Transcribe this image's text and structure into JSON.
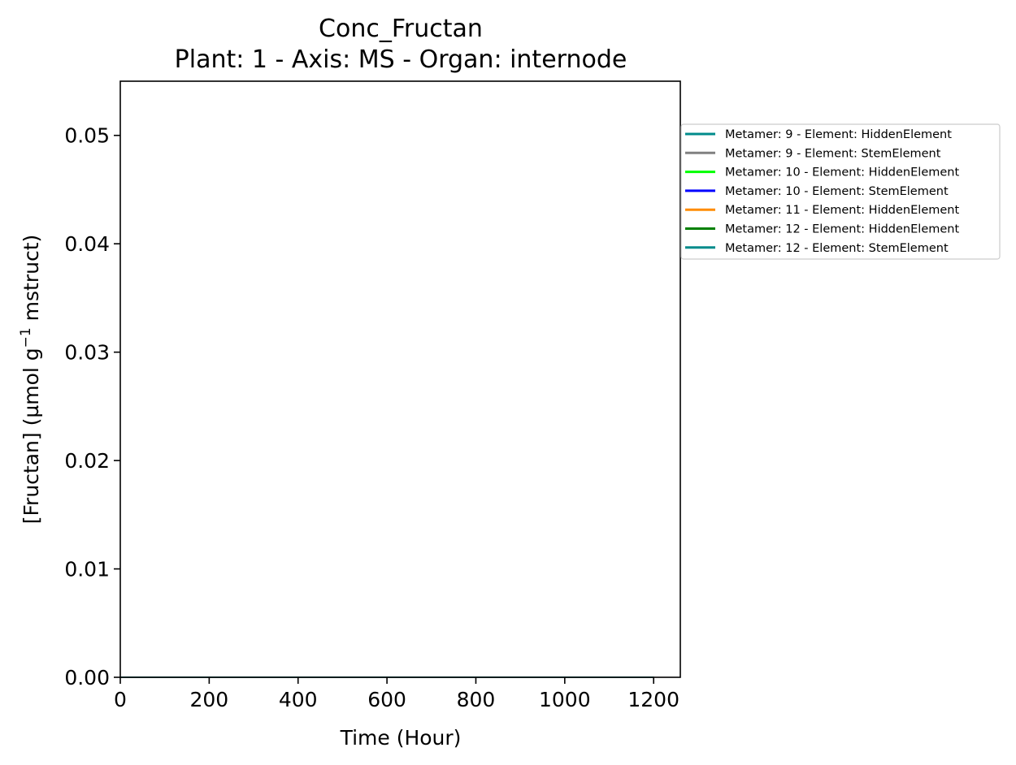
{
  "chart_data": {
    "type": "line",
    "title": "Conc_Fructan",
    "subtitle": "Plant: 1 - Axis: MS - Organ: internode",
    "xlabel": "Time (Hour)",
    "ylabel_main": "[Fructan] (µmol g",
    "ylabel_sup": "−1",
    "ylabel_tail": " mstruct)",
    "xlim": [
      0,
      1260
    ],
    "ylim": [
      0,
      0.055
    ],
    "x_ticks": [
      0,
      200,
      400,
      600,
      800,
      1000,
      1200
    ],
    "x_tick_labels": [
      "0",
      "200",
      "400",
      "600",
      "800",
      "1000",
      "1200"
    ],
    "y_ticks": [
      0,
      0.01,
      0.02,
      0.03,
      0.04,
      0.05
    ],
    "y_tick_labels": [
      "0.00",
      "0.01",
      "0.02",
      "0.03",
      "0.04",
      "0.05"
    ],
    "grid": false,
    "legend_placement": "outside-right",
    "series": [
      {
        "name": "Metamer: 9 - Element: HiddenElement",
        "color": "#008b8b",
        "x": [
          0,
          1200
        ],
        "y": [
          0,
          0
        ]
      },
      {
        "name": "Metamer: 9 - Element: StemElement",
        "color": "#808080",
        "x": [
          0,
          1200
        ],
        "y": [
          0,
          0
        ]
      },
      {
        "name": "Metamer: 10 - Element: HiddenElement",
        "color": "#00ff00",
        "x": [
          0,
          1200
        ],
        "y": [
          0,
          0
        ]
      },
      {
        "name": "Metamer: 10 - Element: StemElement",
        "color": "#0000ff",
        "x": [
          0,
          1200
        ],
        "y": [
          0,
          0
        ]
      },
      {
        "name": "Metamer: 11 - Element: HiddenElement",
        "color": "#ff8c00",
        "x": [
          0,
          1200
        ],
        "y": [
          0,
          0
        ]
      },
      {
        "name": "Metamer: 12 - Element: HiddenElement",
        "color": "#008000",
        "x": [
          0,
          1200
        ],
        "y": [
          0,
          0
        ]
      },
      {
        "name": "Metamer: 12 - Element: StemElement",
        "color": "#008b8b",
        "x": [
          0,
          1200
        ],
        "y": [
          0,
          0
        ]
      }
    ]
  }
}
